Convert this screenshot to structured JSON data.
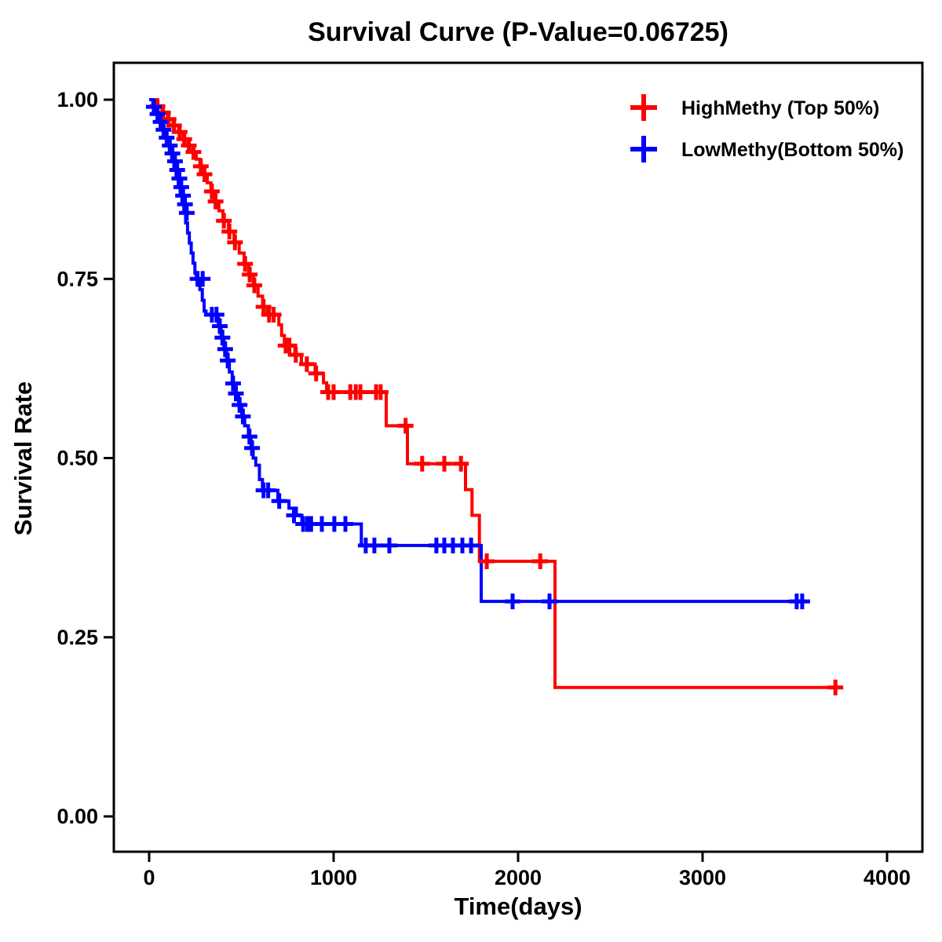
{
  "chart_data": {
    "type": "line",
    "subtype": "kaplan-meier-survival-step",
    "title": "Survival Curve (P-Value=0.06725)",
    "p_value": "0.06725",
    "xlabel": "Time(days)",
    "ylabel": "Survival Rate",
    "xlim": [
      0,
      4000
    ],
    "ylim": [
      0.0,
      1.0
    ],
    "xticks": [
      0,
      1000,
      2000,
      3000,
      4000
    ],
    "xtick_labels": [
      "0",
      "1000",
      "2000",
      "3000",
      "4000"
    ],
    "yticks": [
      0.0,
      0.25,
      0.5,
      0.75,
      1.0
    ],
    "ytick_labels": [
      "0.00",
      "0.25",
      "0.50",
      "0.75",
      "1.00"
    ],
    "grid": false,
    "legend_position": "top-right",
    "frame_color": "#000000",
    "series": [
      {
        "name": "HighMethy (Top 50%)",
        "color": "#FF0000",
        "start": [
          0,
          1.0
        ],
        "steps": [
          [
            40,
            0.991
          ],
          [
            70,
            0.982
          ],
          [
            100,
            0.973
          ],
          [
            130,
            0.964
          ],
          [
            160,
            0.955
          ],
          [
            185,
            0.945
          ],
          [
            210,
            0.936
          ],
          [
            235,
            0.927
          ],
          [
            255,
            0.917
          ],
          [
            275,
            0.907
          ],
          [
            295,
            0.896
          ],
          [
            315,
            0.884
          ],
          [
            335,
            0.872
          ],
          [
            355,
            0.858
          ],
          [
            378,
            0.845
          ],
          [
            400,
            0.831
          ],
          [
            430,
            0.816
          ],
          [
            460,
            0.801
          ],
          [
            488,
            0.786
          ],
          [
            515,
            0.771
          ],
          [
            540,
            0.756
          ],
          [
            565,
            0.741
          ],
          [
            590,
            0.726
          ],
          [
            615,
            0.711
          ],
          [
            640,
            0.7
          ],
          [
            703,
            0.686
          ],
          [
            718,
            0.671
          ],
          [
            733,
            0.657
          ],
          [
            790,
            0.644
          ],
          [
            825,
            0.631
          ],
          [
            900,
            0.618
          ],
          [
            945,
            0.605
          ],
          [
            962,
            0.592
          ],
          [
            1285,
            0.545
          ],
          [
            1400,
            0.492
          ],
          [
            1715,
            0.456
          ],
          [
            1750,
            0.42
          ],
          [
            1790,
            0.356
          ],
          [
            2200,
            0.18
          ]
        ],
        "end_time": 3720,
        "censors": [
          [
            45,
            0.991
          ],
          [
            75,
            0.982
          ],
          [
            105,
            0.973
          ],
          [
            135,
            0.964
          ],
          [
            165,
            0.955
          ],
          [
            190,
            0.945
          ],
          [
            215,
            0.936
          ],
          [
            240,
            0.927
          ],
          [
            280,
            0.907
          ],
          [
            300,
            0.896
          ],
          [
            340,
            0.872
          ],
          [
            360,
            0.858
          ],
          [
            405,
            0.831
          ],
          [
            435,
            0.816
          ],
          [
            465,
            0.801
          ],
          [
            520,
            0.771
          ],
          [
            545,
            0.756
          ],
          [
            570,
            0.741
          ],
          [
            620,
            0.711
          ],
          [
            650,
            0.7
          ],
          [
            675,
            0.7
          ],
          [
            740,
            0.657
          ],
          [
            760,
            0.657
          ],
          [
            795,
            0.644
          ],
          [
            855,
            0.631
          ],
          [
            905,
            0.618
          ],
          [
            970,
            0.592
          ],
          [
            1000,
            0.592
          ],
          [
            1090,
            0.592
          ],
          [
            1120,
            0.592
          ],
          [
            1145,
            0.592
          ],
          [
            1230,
            0.592
          ],
          [
            1255,
            0.592
          ],
          [
            1390,
            0.545
          ],
          [
            1480,
            0.492
          ],
          [
            1600,
            0.492
          ],
          [
            1690,
            0.492
          ],
          [
            1830,
            0.356
          ],
          [
            2120,
            0.356
          ],
          [
            3720,
            0.18
          ]
        ]
      },
      {
        "name": "LowMethy(Bottom 50%)",
        "color": "#0000FF",
        "start": [
          0,
          1.0
        ],
        "steps": [
          [
            20,
            0.99
          ],
          [
            35,
            0.98
          ],
          [
            50,
            0.969
          ],
          [
            65,
            0.958
          ],
          [
            80,
            0.947
          ],
          [
            95,
            0.936
          ],
          [
            110,
            0.925
          ],
          [
            122,
            0.914
          ],
          [
            134,
            0.902
          ],
          [
            146,
            0.89
          ],
          [
            158,
            0.878
          ],
          [
            168,
            0.866
          ],
          [
            178,
            0.854
          ],
          [
            188,
            0.842
          ],
          [
            198,
            0.828
          ],
          [
            208,
            0.814
          ],
          [
            218,
            0.8
          ],
          [
            228,
            0.786
          ],
          [
            238,
            0.772
          ],
          [
            248,
            0.758
          ],
          [
            255,
            0.75
          ],
          [
            275,
            0.735
          ],
          [
            288,
            0.72
          ],
          [
            298,
            0.705
          ],
          [
            308,
            0.7
          ],
          [
            375,
            0.684
          ],
          [
            390,
            0.668
          ],
          [
            405,
            0.652
          ],
          [
            420,
            0.636
          ],
          [
            435,
            0.62
          ],
          [
            450,
            0.604
          ],
          [
            465,
            0.59
          ],
          [
            485,
            0.574
          ],
          [
            502,
            0.558
          ],
          [
            518,
            0.545
          ],
          [
            538,
            0.53
          ],
          [
            552,
            0.514
          ],
          [
            564,
            0.5
          ],
          [
            578,
            0.49
          ],
          [
            598,
            0.47
          ],
          [
            614,
            0.455
          ],
          [
            698,
            0.44
          ],
          [
            758,
            0.43
          ],
          [
            798,
            0.42
          ],
          [
            828,
            0.408
          ],
          [
            1150,
            0.378
          ],
          [
            1800,
            0.3
          ]
        ],
        "end_time": 3550,
        "censors": [
          [
            25,
            0.99
          ],
          [
            45,
            0.98
          ],
          [
            62,
            0.969
          ],
          [
            78,
            0.958
          ],
          [
            95,
            0.947
          ],
          [
            112,
            0.936
          ],
          [
            126,
            0.925
          ],
          [
            140,
            0.914
          ],
          [
            152,
            0.902
          ],
          [
            164,
            0.89
          ],
          [
            174,
            0.878
          ],
          [
            184,
            0.866
          ],
          [
            194,
            0.854
          ],
          [
            204,
            0.842
          ],
          [
            262,
            0.75
          ],
          [
            290,
            0.75
          ],
          [
            340,
            0.7
          ],
          [
            365,
            0.7
          ],
          [
            383,
            0.684
          ],
          [
            397,
            0.668
          ],
          [
            412,
            0.652
          ],
          [
            426,
            0.636
          ],
          [
            455,
            0.604
          ],
          [
            470,
            0.59
          ],
          [
            490,
            0.574
          ],
          [
            508,
            0.558
          ],
          [
            544,
            0.53
          ],
          [
            558,
            0.514
          ],
          [
            620,
            0.455
          ],
          [
            645,
            0.455
          ],
          [
            705,
            0.44
          ],
          [
            785,
            0.42
          ],
          [
            835,
            0.408
          ],
          [
            858,
            0.408
          ],
          [
            878,
            0.408
          ],
          [
            936,
            0.408
          ],
          [
            1004,
            0.408
          ],
          [
            1064,
            0.408
          ],
          [
            1174,
            0.378
          ],
          [
            1221,
            0.378
          ],
          [
            1302,
            0.378
          ],
          [
            1557,
            0.378
          ],
          [
            1600,
            0.378
          ],
          [
            1647,
            0.378
          ],
          [
            1698,
            0.378
          ],
          [
            1745,
            0.378
          ],
          [
            1970,
            0.3
          ],
          [
            2170,
            0.3
          ],
          [
            3510,
            0.3
          ],
          [
            3540,
            0.3
          ]
        ]
      }
    ]
  }
}
